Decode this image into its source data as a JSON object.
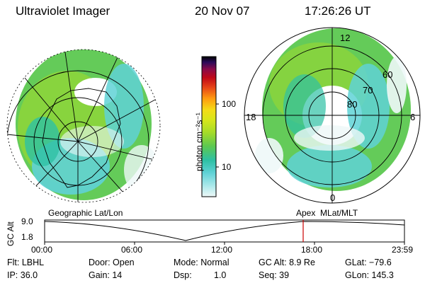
{
  "header": {
    "instrument": "Ultraviolet Imager",
    "date": "20 Nov 07",
    "time": "17:26:26 UT"
  },
  "colorbar": {
    "unit_label": "photon cm⁻²s⁻¹",
    "ticks": [
      "100",
      "10"
    ],
    "scale": "log",
    "colors": [
      "#eef8f8",
      "#5fd2d6",
      "#2ec0a4",
      "#5cc850",
      "#a6dc28",
      "#d8e61a",
      "#f4dc18",
      "#ff9c10",
      "#e64418",
      "#c00818",
      "#880a4a",
      "#2a0a5a",
      "#000000"
    ]
  },
  "left_map": {
    "caption": "Geographic Lat/Lon"
  },
  "right_map": {
    "caption": "Apex  MLat/MLT",
    "mlt_labels": [
      "12",
      "18",
      "6",
      "0"
    ],
    "mlat_labels": [
      "60",
      "70",
      "80"
    ]
  },
  "altitude_plot": {
    "ylabel": "GC Alt",
    "yticks": [
      "9.0",
      "1.8"
    ],
    "xticks": [
      "00:00",
      "06:00",
      "12:00",
      "18:00",
      "23:59"
    ],
    "marker_color": "#cc0000"
  },
  "status": {
    "row1": {
      "flt": "Flt: LBHL",
      "door": "Door: Open",
      "mode": "Mode: Normal",
      "gcalt": "GC Alt: 8.9 Re",
      "glat": "GLat: −79.6"
    },
    "row2": {
      "ip": "IP: 36.0",
      "gain": "Gain: 14",
      "dsp_label": "Dsp:",
      "dsp_value": "1.0",
      "seq": "Seq: 39",
      "glon": "GLon: 145.3"
    }
  }
}
